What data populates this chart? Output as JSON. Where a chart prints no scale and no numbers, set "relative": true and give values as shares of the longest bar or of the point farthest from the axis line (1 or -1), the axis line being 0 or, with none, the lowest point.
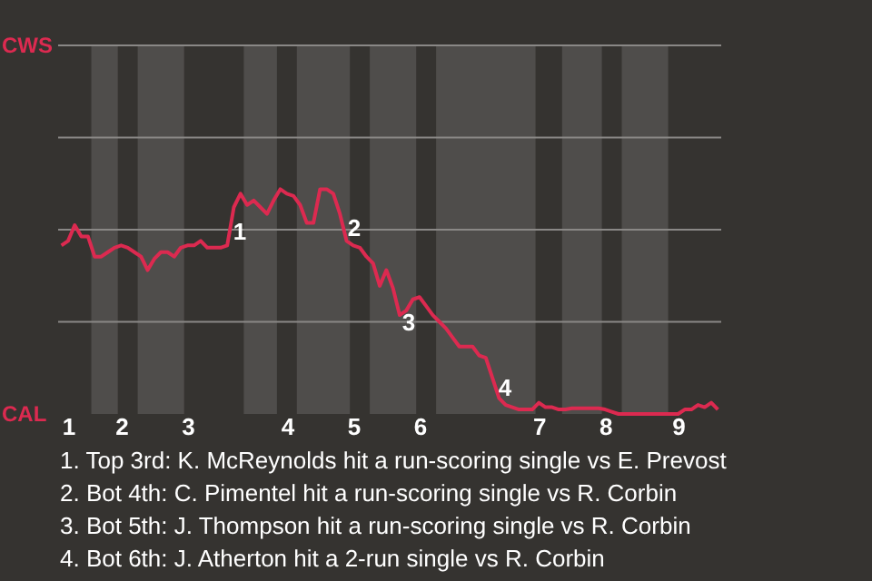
{
  "chart_data": {
    "type": "line",
    "relative": true,
    "color": "#dc2a50",
    "marker": "none",
    "line_style": "solid",
    "categories": [
      null,
      "1",
      null,
      null,
      null,
      null,
      null,
      null,
      null,
      "2",
      null,
      null,
      null,
      null,
      null,
      null,
      null,
      null,
      null,
      "3",
      null,
      null,
      null,
      null,
      null,
      null,
      null,
      null,
      null,
      null,
      null,
      null,
      null,
      null,
      "4",
      null,
      null,
      null,
      null,
      null,
      null,
      null,
      null,
      null,
      "5",
      null,
      null,
      null,
      null,
      null,
      null,
      null,
      null,
      null,
      "6",
      null,
      null,
      null,
      null,
      null,
      null,
      null,
      null,
      null,
      null,
      null,
      null,
      null,
      null,
      null,
      null,
      null,
      "7",
      null,
      null,
      null,
      null,
      null,
      null,
      null,
      null,
      null,
      "8",
      null,
      null,
      null,
      null,
      null,
      null,
      null,
      null,
      null,
      null,
      "9",
      null,
      null,
      null,
      null,
      null,
      null
    ],
    "values": [
      0.75,
      0.77,
      0.84,
      0.79,
      0.79,
      0.7,
      0.7,
      0.72,
      0.74,
      0.75,
      0.74,
      0.72,
      0.7,
      0.64,
      0.69,
      0.72,
      0.72,
      0.7,
      0.74,
      0.75,
      0.75,
      0.77,
      0.74,
      0.74,
      0.74,
      0.75,
      0.92,
      0.98,
      0.93,
      0.95,
      0.92,
      0.89,
      0.95,
      1,
      0.98,
      0.97,
      0.93,
      0.85,
      0.85,
      1,
      1,
      0.98,
      0.89,
      0.77,
      0.75,
      0.74,
      0.7,
      0.67,
      0.57,
      0.64,
      0.56,
      0.44,
      0.46,
      0.51,
      0.52,
      0.48,
      0.44,
      0.41,
      0.38,
      0.34,
      0.3,
      0.3,
      0.3,
      0.26,
      0.25,
      0.16,
      0.07,
      0.04,
      0.03,
      0.02,
      0.02,
      0.02,
      0.05,
      0.03,
      0.03,
      0.02,
      0.02,
      0.025,
      0.025,
      0.025,
      0.025,
      0.025,
      0.02,
      0.01,
      0,
      0,
      0,
      0,
      0,
      0,
      0,
      0,
      0,
      0,
      0.02,
      0.02,
      0.04,
      0.03,
      0.05,
      0.02
    ],
    "ref_lines": [
      {
        "axis": "y",
        "value": 0.41,
        "color": "#8a8886",
        "line_style": "solid"
      },
      {
        "axis": "y",
        "value": 0.82,
        "color": "#8a8886",
        "line_style": "solid"
      },
      {
        "axis": "y",
        "value": 1.23,
        "color": "#8a8886",
        "line_style": "solid"
      },
      {
        "axis": "y",
        "value": 1.64,
        "color": "#8a8886",
        "line_style": "solid"
      }
    ],
    "annotations": [
      "CWS",
      "CAL",
      "1",
      "2",
      "3",
      "4",
      "1. Top 3rd: K. McReynolds hit a run-scoring single vs E. Prevost",
      "2. Bot 4th: C. Pimentel hit a run-scoring single vs R. Corbin",
      "3. Bot 5th: J. Thompson hit a run-scoring single vs R. Corbin",
      "4. Bot 6th: J. Atherton hit a 2-run single vs R. Corbin"
    ]
  }
}
